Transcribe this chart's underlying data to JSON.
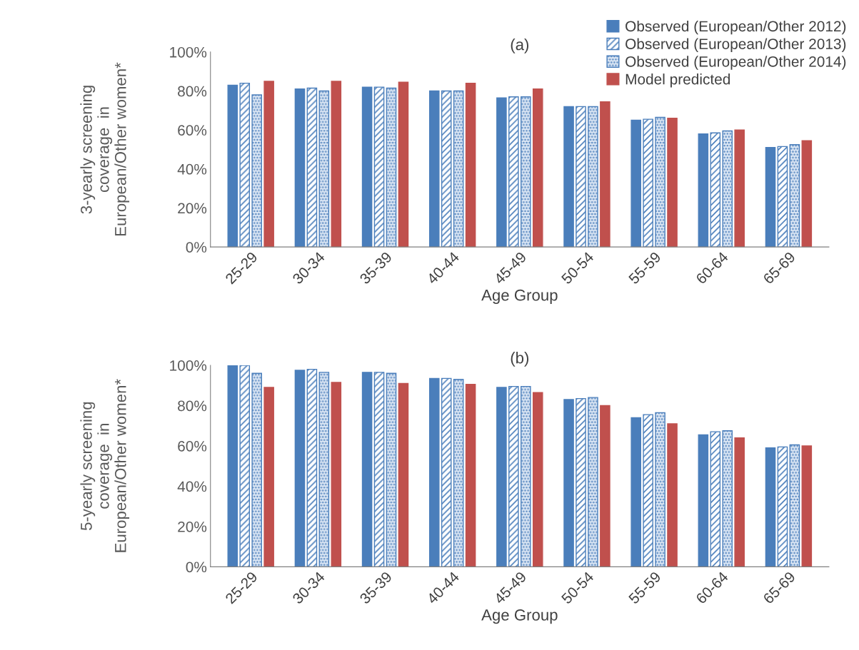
{
  "chart_data": [
    {
      "type": "bar",
      "title": "(a)",
      "xlabel": "Age Group",
      "ylabel": "3-yearly screening\ncoverage  in\nEuropean/Other women*",
      "categories": [
        "25-29",
        "30-34",
        "35-39",
        "40-44",
        "45-49",
        "50-54",
        "55-59",
        "60-64",
        "65-69"
      ],
      "series": [
        {
          "name": "Observed (European/Other 2012)",
          "color": "#4a7ebb",
          "values": [
            83,
            81,
            82,
            80,
            76.5,
            72,
            65,
            58,
            51
          ]
        },
        {
          "name": "Observed (European/Other 2013)",
          "color": "#4a7ebb",
          "values": [
            84,
            81.5,
            82,
            80,
            77,
            72,
            65.5,
            58.5,
            51.5
          ]
        },
        {
          "name": "Observed (European/Other 2014)",
          "color": "#4a7ebb",
          "values": [
            78,
            80,
            81.5,
            80,
            77,
            72,
            66.5,
            59.5,
            52.5
          ]
        },
        {
          "name": "Model predicted",
          "color": "#c0504d",
          "values": [
            85,
            85,
            84.5,
            84,
            81,
            74.5,
            66,
            60,
            54.5
          ]
        }
      ],
      "ylim": [
        0,
        100
      ],
      "yticks": [
        {
          "value": 0,
          "label": "0%"
        },
        {
          "value": 20,
          "label": "20%"
        },
        {
          "value": 40,
          "label": "40%"
        },
        {
          "value": 60,
          "label": "60%"
        },
        {
          "value": 80,
          "label": "80%"
        },
        {
          "value": 100,
          "label": "100%"
        }
      ],
      "legend": "top right"
    },
    {
      "type": "bar",
      "title": "(b)",
      "xlabel": "Age Group",
      "ylabel": "5-yearly screening\ncoverage  in\nEuropean/Other women*",
      "categories": [
        "25-29",
        "30-34",
        "35-39",
        "40-44",
        "45-49",
        "50-54",
        "55-59",
        "60-64",
        "65-69"
      ],
      "series": [
        {
          "color": "#4a7ebb",
          "values": [
            100,
            97.5,
            96.5,
            93.5,
            89,
            83,
            74,
            65.5,
            59
          ]
        },
        {
          "color": "#4a7ebb",
          "values": [
            100,
            98,
            96.5,
            93.5,
            89.5,
            83.5,
            75.5,
            67,
            59.5
          ]
        },
        {
          "color": "#4a7ebb",
          "values": [
            96,
            96.5,
            96,
            93,
            89.5,
            84,
            76.5,
            67.5,
            60.5
          ]
        },
        {
          "color": "#c0504d",
          "values": [
            89,
            91.5,
            91,
            90.5,
            86.5,
            80,
            71,
            64,
            60
          ]
        }
      ],
      "ylim": [
        0,
        100
      ],
      "yticks": [
        {
          "value": 0,
          "label": "0%"
        },
        {
          "value": 20,
          "label": "20%"
        },
        {
          "value": 40,
          "label": "40%"
        },
        {
          "value": 60,
          "label": "60%"
        },
        {
          "value": 80,
          "label": "80%"
        },
        {
          "value": 100,
          "label": "100%"
        }
      ]
    }
  ]
}
